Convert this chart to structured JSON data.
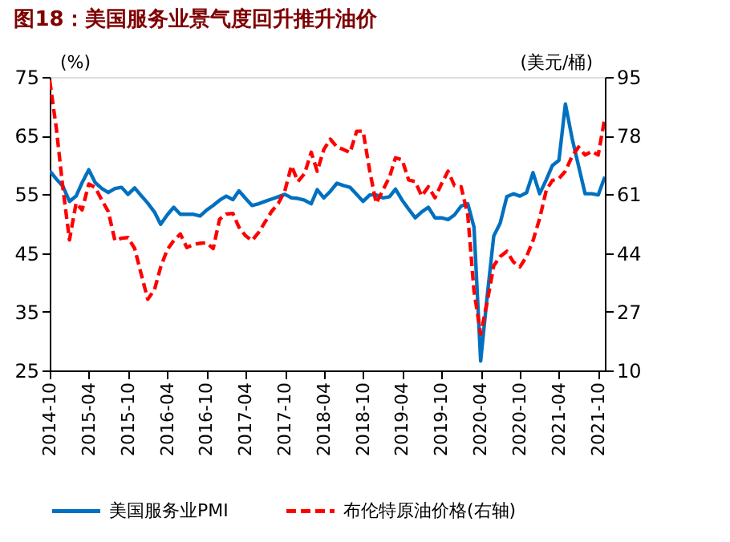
{
  "chart_data": {
    "type": "line",
    "title": "图18：美国服务业景气度回升推升油价",
    "x": [
      "2014-10",
      "2014-11",
      "2014-12",
      "2015-01",
      "2015-02",
      "2015-03",
      "2015-04",
      "2015-05",
      "2015-06",
      "2015-07",
      "2015-08",
      "2015-09",
      "2015-10",
      "2015-11",
      "2015-12",
      "2016-01",
      "2016-02",
      "2016-03",
      "2016-04",
      "2016-05",
      "2016-06",
      "2016-07",
      "2016-08",
      "2016-09",
      "2016-10",
      "2016-11",
      "2016-12",
      "2017-01",
      "2017-02",
      "2017-03",
      "2017-04",
      "2017-05",
      "2017-06",
      "2017-07",
      "2017-08",
      "2017-09",
      "2017-10",
      "2017-11",
      "2017-12",
      "2018-01",
      "2018-02",
      "2018-03",
      "2018-04",
      "2018-05",
      "2018-06",
      "2018-07",
      "2018-08",
      "2018-09",
      "2018-10",
      "2018-11",
      "2018-12",
      "2019-01",
      "2019-02",
      "2019-03",
      "2019-04",
      "2019-05",
      "2019-06",
      "2019-07",
      "2019-08",
      "2019-09",
      "2019-10",
      "2019-11",
      "2019-12",
      "2020-01",
      "2020-02",
      "2020-03",
      "2020-04",
      "2020-05",
      "2020-06",
      "2020-07",
      "2020-08",
      "2020-09",
      "2020-10",
      "2020-11",
      "2020-12",
      "2021-01",
      "2021-02",
      "2021-03",
      "2021-04",
      "2021-05",
      "2021-06",
      "2021-07",
      "2021-08",
      "2021-09",
      "2021-10",
      "2021-11"
    ],
    "series": [
      {
        "name": "美国服务业PMI",
        "color": "#0070c0",
        "line_style": "solid",
        "values": [
          59.0,
          57.6,
          56.4,
          53.8,
          54.7,
          57.0,
          59.2,
          57.0,
          56.0,
          55.3,
          56.0,
          56.2,
          55.0,
          56.1,
          54.8,
          53.5,
          52.0,
          49.9,
          51.5,
          52.8,
          51.6,
          51.6,
          51.6,
          51.3,
          52.3,
          53.1,
          54.0,
          54.7,
          54.1,
          55.6,
          54.3,
          53.1,
          53.4,
          53.8,
          54.2,
          54.6,
          55.0,
          54.4,
          54.3,
          54.0,
          53.4,
          55.8,
          54.4,
          55.5,
          56.9,
          56.5,
          56.2,
          55.0,
          53.8,
          54.9,
          54.9,
          54.4,
          54.6,
          55.9,
          54.0,
          52.5,
          51.0,
          52.0,
          52.8,
          51.0,
          51.0,
          50.7,
          51.5,
          53.0,
          53.4,
          49.4,
          26.6,
          37.5,
          47.9,
          50.1,
          54.6,
          55.1,
          54.7,
          55.3,
          58.7,
          55.1,
          57.5,
          59.9,
          60.8,
          70.4,
          64.6,
          59.9,
          55.1,
          55.1,
          54.9,
          58.0
        ]
      },
      {
        "name": "布伦特原油价格(右轴)",
        "color": "#ff0000",
        "line_style": "dashed",
        "axis": "y2",
        "values": [
          94,
          80,
          63,
          47.8,
          58.5,
          56.5,
          64,
          63,
          59.3,
          56,
          47.6,
          48.3,
          48.5,
          45.3,
          38,
          30.6,
          33.3,
          39.9,
          45,
          47.6,
          49.5,
          45.6,
          46.5,
          46.8,
          47,
          45.3,
          53.8,
          55.3,
          55.5,
          51.5,
          49,
          47.6,
          50,
          53,
          56.1,
          58.4,
          62,
          69.3,
          64.7,
          67,
          73.2,
          67.7,
          74,
          77.0,
          74.7,
          74,
          73.1,
          79.3,
          79.3,
          67.7,
          58.4,
          62.2,
          66,
          71.6,
          71,
          65.2,
          64.7,
          60.5,
          63.2,
          60,
          64,
          67.7,
          63.5,
          63.2,
          55,
          33,
          20.5,
          29.7,
          40.3,
          43.0,
          44.5,
          41.4,
          40,
          43,
          47.6,
          54,
          62.2,
          65,
          65.6,
          67.7,
          72,
          74.7,
          72.4,
          73.5,
          72.4,
          83.2
        ]
      }
    ],
    "ylabel": "(%)",
    "y2label": "(美元/桶)",
    "xlim": [
      "2014-10",
      "2021-11"
    ],
    "xticks": [
      "2014-10",
      "2015-04",
      "2015-10",
      "2016-04",
      "2016-10",
      "2017-04",
      "2017-10",
      "2018-04",
      "2018-10",
      "2019-04",
      "2019-10",
      "2020-04",
      "2020-10",
      "2021-04",
      "2021-10"
    ],
    "ylim": [
      25,
      75
    ],
    "yticks": [
      25,
      35,
      45,
      55,
      65,
      75
    ],
    "y2lim": [
      10,
      95
    ],
    "y2ticks": [
      10,
      27,
      44,
      61,
      78,
      95
    ],
    "grid": false,
    "legend": "bottom",
    "marker": "none"
  }
}
